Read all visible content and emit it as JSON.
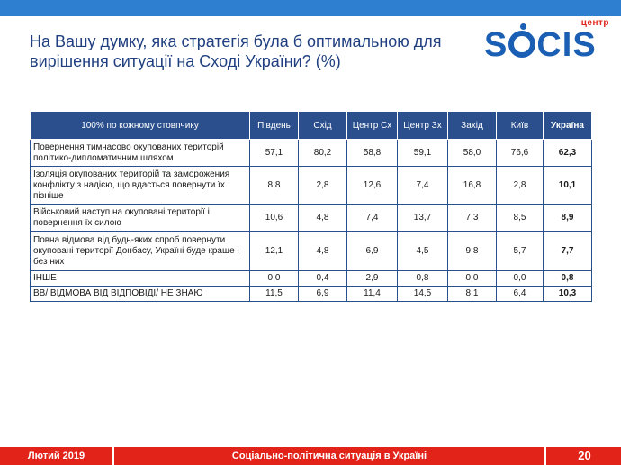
{
  "title": "На Вашу думку, яка стратегія була б оптимальною для вирішення ситуації на Сході України? (%)",
  "logo": {
    "small": "центр",
    "big_left": "S",
    "big_right": "CIS"
  },
  "table": {
    "headers": [
      "100% по кожному стовпчику",
      "Південь",
      "Схід",
      "Центр Сх",
      "Центр Зх",
      "Захід",
      "Київ",
      "Україна"
    ],
    "rows": [
      {
        "label": "Повернення тимчасово окупованих територій політико-дипломатичним шляхом",
        "values": [
          "57,1",
          "80,2",
          "58,8",
          "59,1",
          "58,0",
          "76,6",
          "62,3"
        ]
      },
      {
        "label": "Ізоляція окупованих територій та заморожения конфлікту з надією, що вдасться повернути їх пізніше",
        "values": [
          "8,8",
          "2,8",
          "12,6",
          "7,4",
          "16,8",
          "2,8",
          "10,1"
        ]
      },
      {
        "label": "Військовий наступ на окуповані території і повернення їх силою",
        "values": [
          "10,6",
          "4,8",
          "7,4",
          "13,7",
          "7,3",
          "8,5",
          "8,9"
        ]
      },
      {
        "label": "Повна відмова від будь-яких спроб повернути окуповані території Донбасу, Україні буде краще і без них",
        "values": [
          "12,1",
          "4,8",
          "6,9",
          "4,5",
          "9,8",
          "5,7",
          "7,7"
        ]
      },
      {
        "label": "ІНШЕ",
        "values": [
          "0,0",
          "0,4",
          "2,9",
          "0,8",
          "0,0",
          "0,0",
          "0,8"
        ]
      },
      {
        "label": "ВВ/ ВІДМОВА ВІД ВІДПОВІДІ/ НЕ ЗНАЮ",
        "values": [
          "11,5",
          "6,9",
          "11,4",
          "14,5",
          "8,1",
          "6,4",
          "10,3"
        ]
      }
    ]
  },
  "footer": {
    "date": "Лютий 2019",
    "center": "Соціально-політична ситуація в Україні",
    "page": "20"
  },
  "colors": {
    "accent_blue": "#2b4f8c",
    "footer_red": "#e2231a",
    "title_blue": "#1f3f80"
  }
}
